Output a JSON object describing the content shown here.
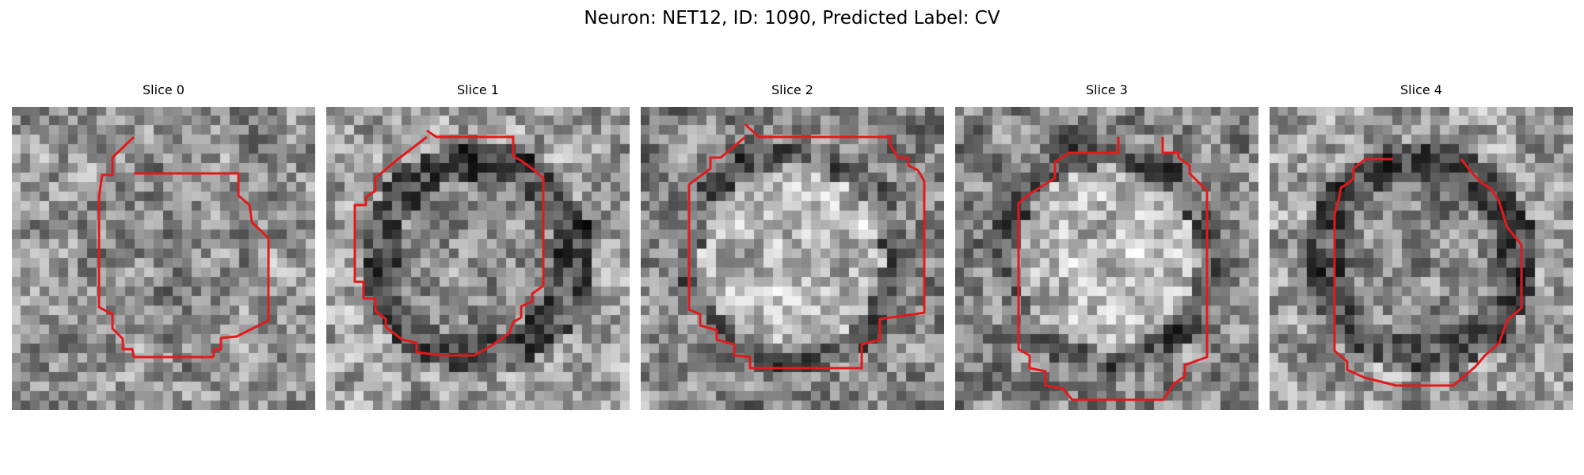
{
  "figure": {
    "title": "Neuron: NET12, ID: 1090, Predicted Label: CV"
  },
  "colors": {
    "contour": "#e31a1c",
    "background": "#ffffff",
    "colormap": "gray"
  },
  "panels": [
    {
      "label": "Slice 0",
      "seed": 11,
      "pattern": "center-mid"
    },
    {
      "label": "Slice 1",
      "seed": 23,
      "pattern": "dark-ring"
    },
    {
      "label": "Slice 2",
      "seed": 37,
      "pattern": "bright-center"
    },
    {
      "label": "Slice 3",
      "seed": 41,
      "pattern": "bright-center"
    },
    {
      "label": "Slice 4",
      "seed": 59,
      "pattern": "dark-ring"
    }
  ]
}
